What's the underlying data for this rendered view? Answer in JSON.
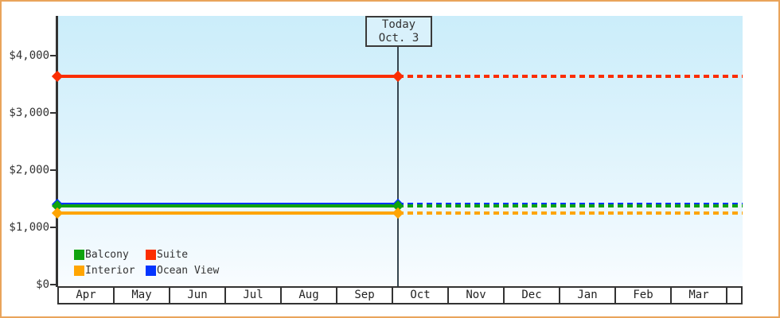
{
  "window": {
    "background_color": "#ffffff",
    "frame_border_color": "#e9a45b"
  },
  "chart_data": {
    "type": "line",
    "title": "",
    "x_axis": {
      "months": [
        "Apr",
        "May",
        "Jun",
        "Jul",
        "Aug",
        "Sep",
        "Oct",
        "Nov",
        "Dec",
        "Jan",
        "Feb",
        "Mar"
      ]
    },
    "y_axis": {
      "unit": "USD",
      "range": [
        0,
        4700
      ],
      "ticks": [
        {
          "label": "$4,000",
          "value": 4000
        },
        {
          "label": "$3,000",
          "value": 3000
        },
        {
          "label": "$2,000",
          "value": 2000
        },
        {
          "label": "$1,000",
          "value": 1000
        },
        {
          "label": "$0",
          "value": 0
        }
      ]
    },
    "today": {
      "line1": "Today",
      "line2": "Oct. 3"
    },
    "series": [
      {
        "name": "Suite",
        "color": "#fb2d01",
        "value": 3640
      },
      {
        "name": "Ocean View",
        "color": "#0435ff",
        "value": 1400
      },
      {
        "name": "Balcony",
        "color": "#0fa30f",
        "value": 1370
      },
      {
        "name": "Interior",
        "color": "#ffa502",
        "value": 1250
      }
    ],
    "legend": [
      {
        "label": "Balcony",
        "color": "#0fa30f"
      },
      {
        "label": "Suite",
        "color": "#fb2d01"
      },
      {
        "label": "Interior",
        "color": "#ffa502"
      },
      {
        "label": "Ocean View",
        "color": "#0435ff"
      }
    ],
    "line_style": {
      "before_today": "solid",
      "after_today": "dashed"
    }
  }
}
